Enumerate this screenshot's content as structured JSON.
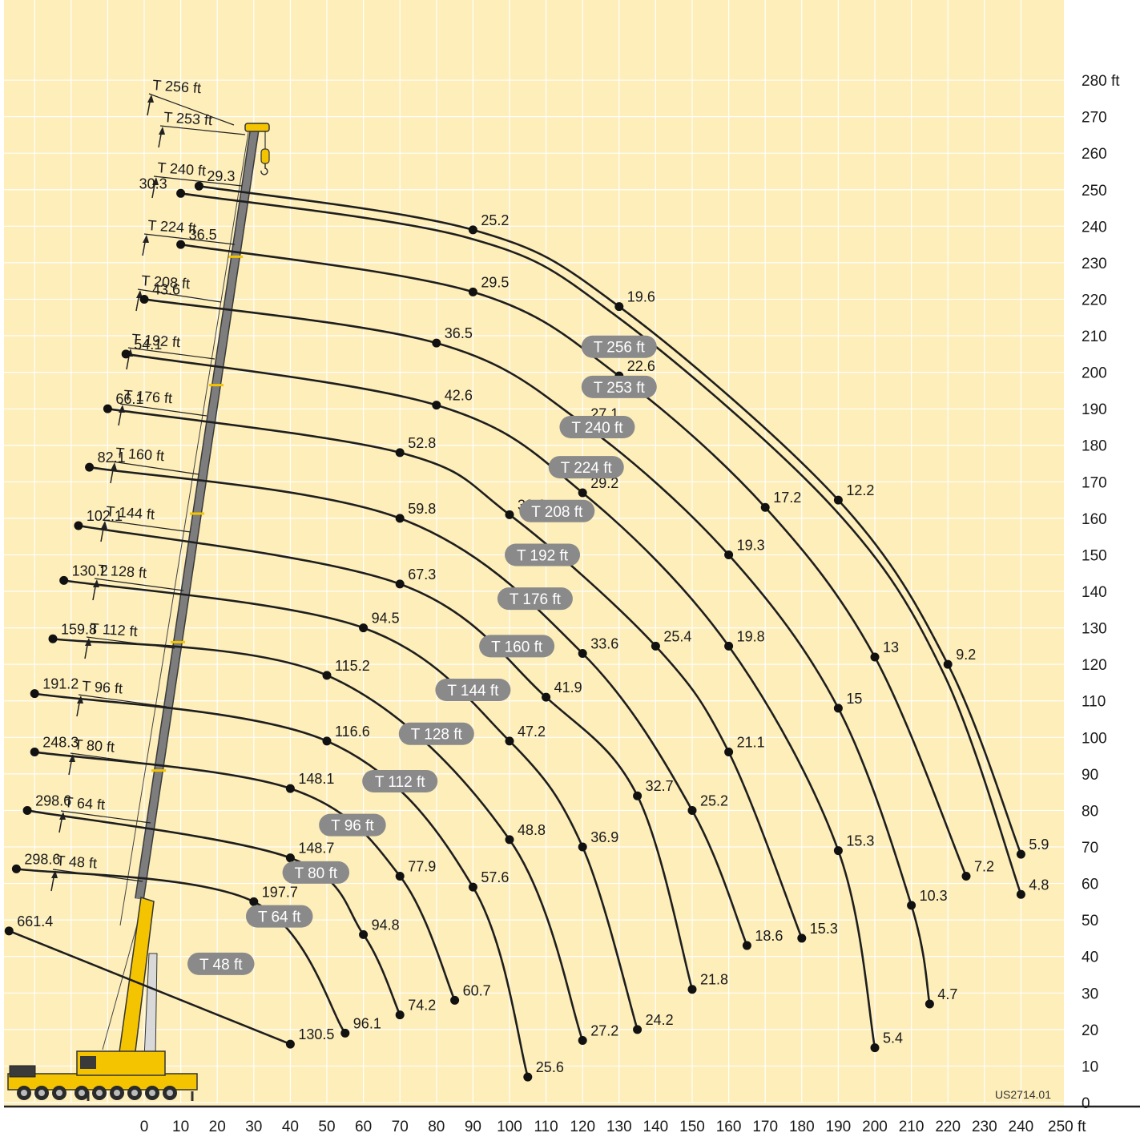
{
  "colors": {
    "background": "#fdeeba",
    "grid": "#ffffff",
    "curve": "#1e1e1e",
    "pill": "#8a8a8a",
    "crane_yellow": "#f5c400",
    "boom_gray": "#7d7d7d"
  },
  "drawing_code": "US2714.01",
  "chart_data": {
    "type": "line",
    "title": "",
    "xlabel": "",
    "ylabel": "",
    "x_unit": "ft",
    "y_unit": "ft",
    "xlim": [
      0,
      250
    ],
    "ylim": [
      0,
      280
    ],
    "x_step": 10,
    "y_step": 10,
    "grid": true,
    "x_ticks": [
      "0",
      "10",
      "20",
      "30",
      "40",
      "50",
      "60",
      "70",
      "80",
      "90",
      "100",
      "110",
      "120",
      "130",
      "140",
      "150",
      "160",
      "170",
      "180",
      "190",
      "200",
      "210",
      "220",
      "230",
      "240",
      "250 ft"
    ],
    "y_ticks": [
      "0",
      "10",
      "20",
      "30",
      "40",
      "50",
      "60",
      "70",
      "80",
      "90",
      "100",
      "110",
      "120",
      "130",
      "140",
      "150",
      "160",
      "170",
      "180",
      "190",
      "200",
      "210",
      "220",
      "230",
      "240",
      "250",
      "260",
      "270",
      "280 ft"
    ],
    "boom_labels": [
      "T 256 ft",
      "T 253 ft",
      "T 240 ft",
      "T 224 ft",
      "T 208 ft",
      "T 192 ft",
      "T 176 ft",
      "T 160 ft",
      "T 144 ft",
      "T 128 ft",
      "T 112 ft",
      "T 96 ft",
      "T 80 ft",
      "T 64 ft",
      "T 48 ft"
    ],
    "series": [
      {
        "name": "T 256 ft",
        "label_at": [
          130,
          207
        ],
        "points": [
          {
            "x": 15,
            "y": 251,
            "v": "29.3"
          },
          {
            "x": 90,
            "y": 239,
            "v": "25.2"
          },
          {
            "x": 130,
            "y": 218,
            "v": "19.6"
          },
          {
            "x": 190,
            "y": 165,
            "v": "12.2"
          },
          {
            "x": 220,
            "y": 120,
            "v": "9.2"
          },
          {
            "x": 240,
            "y": 68,
            "v": "5.9"
          }
        ]
      },
      {
        "name": "T 253 ft",
        "label_at": [
          130,
          196
        ],
        "points": [
          {
            "x": 10,
            "y": 249,
            "v": "30.3"
          },
          {
            "x": 240,
            "y": 57,
            "v": "4.8"
          }
        ]
      },
      {
        "name": "T 240 ft",
        "label_at": [
          124,
          185
        ],
        "points": [
          {
            "x": 10,
            "y": 235,
            "v": "36.5"
          },
          {
            "x": 90,
            "y": 222,
            "v": "29.5"
          },
          {
            "x": 130,
            "y": 199,
            "v": "22.6"
          },
          {
            "x": 170,
            "y": 163,
            "v": "17.2"
          },
          {
            "x": 200,
            "y": 122,
            "v": "13"
          },
          {
            "x": 225,
            "y": 62,
            "v": "7.2"
          }
        ]
      },
      {
        "name": "T 224 ft",
        "label_at": [
          121,
          174
        ],
        "points": [
          {
            "x": 0,
            "y": 220,
            "v": "43.6"
          },
          {
            "x": 80,
            "y": 208,
            "v": "36.5"
          },
          {
            "x": 120,
            "y": 186,
            "v": "27.1"
          },
          {
            "x": 160,
            "y": 150,
            "v": "19.3"
          },
          {
            "x": 190,
            "y": 108,
            "v": "15"
          },
          {
            "x": 210,
            "y": 54,
            "v": "10.3"
          },
          {
            "x": 215,
            "y": 27,
            "v": "4.7"
          }
        ]
      },
      {
        "name": "T 208 ft",
        "label_at": [
          113,
          162
        ],
        "points": [
          {
            "x": -5,
            "y": 205,
            "v": "54.1"
          },
          {
            "x": 80,
            "y": 191,
            "v": "42.6"
          },
          {
            "x": 120,
            "y": 167,
            "v": "29.2"
          },
          {
            "x": 160,
            "y": 125,
            "v": "19.8"
          },
          {
            "x": 190,
            "y": 69,
            "v": "15.3"
          },
          {
            "x": 200,
            "y": 15,
            "v": "5.4"
          }
        ]
      },
      {
        "name": "T 192 ft",
        "label_at": [
          109,
          150
        ],
        "points": [
          {
            "x": -10,
            "y": 190,
            "v": "66.1"
          },
          {
            "x": 70,
            "y": 178,
            "v": "52.8"
          },
          {
            "x": 100,
            "y": 161,
            "v": "38.6"
          },
          {
            "x": 140,
            "y": 125,
            "v": "25.4"
          },
          {
            "x": 160,
            "y": 96,
            "v": "21.1"
          },
          {
            "x": 180,
            "y": 45,
            "v": "15.3"
          }
        ]
      },
      {
        "name": "T 176 ft",
        "label_at": [
          107,
          138
        ],
        "points": [
          {
            "x": -15,
            "y": 174,
            "v": "82.1"
          },
          {
            "x": 70,
            "y": 160,
            "v": "59.8"
          },
          {
            "x": 120,
            "y": 123,
            "v": "33.6"
          },
          {
            "x": 150,
            "y": 80,
            "v": "25.2"
          },
          {
            "x": 165,
            "y": 43,
            "v": "18.6"
          }
        ]
      },
      {
        "name": "T 160 ft",
        "label_at": [
          102,
          125
        ],
        "points": [
          {
            "x": -18,
            "y": 158,
            "v": "102.1"
          },
          {
            "x": 70,
            "y": 142,
            "v": "67.3"
          },
          {
            "x": 110,
            "y": 111,
            "v": "41.9"
          },
          {
            "x": 135,
            "y": 84,
            "v": "32.7"
          },
          {
            "x": 150,
            "y": 31,
            "v": "21.8"
          }
        ]
      },
      {
        "name": "T 144 ft",
        "label_at": [
          90,
          113
        ],
        "points": [
          {
            "x": -22,
            "y": 143,
            "v": "130.2"
          },
          {
            "x": 60,
            "y": 130,
            "v": "94.5"
          },
          {
            "x": 100,
            "y": 99,
            "v": "47.2"
          },
          {
            "x": 120,
            "y": 70,
            "v": "36.9"
          },
          {
            "x": 135,
            "y": 20,
            "v": "24.2"
          }
        ]
      },
      {
        "name": "T 128 ft",
        "label_at": [
          80,
          101
        ],
        "points": [
          {
            "x": -25,
            "y": 127,
            "v": "159.8"
          },
          {
            "x": 50,
            "y": 117,
            "v": "115.2"
          },
          {
            "x": 100,
            "y": 72,
            "v": "48.8"
          },
          {
            "x": 120,
            "y": 17,
            "v": "27.2"
          }
        ]
      },
      {
        "name": "T 112 ft",
        "label_at": [
          70,
          88
        ],
        "points": [
          {
            "x": -30,
            "y": 112,
            "v": "191.2"
          },
          {
            "x": 50,
            "y": 99,
            "v": "116.6"
          },
          {
            "x": 90,
            "y": 59,
            "v": "57.6"
          },
          {
            "x": 105,
            "y": 7,
            "v": "25.6"
          }
        ]
      },
      {
        "name": "T 96 ft",
        "label_at": [
          57,
          76
        ],
        "points": [
          {
            "x": -30,
            "y": 96,
            "v": "248.3"
          },
          {
            "x": 40,
            "y": 86,
            "v": "148.1"
          },
          {
            "x": 70,
            "y": 62,
            "v": "77.9"
          },
          {
            "x": 85,
            "y": 28,
            "v": "60.7"
          }
        ]
      },
      {
        "name": "T 80 ft",
        "label_at": [
          47,
          63
        ],
        "points": [
          {
            "x": -32,
            "y": 80,
            "v": "298.6"
          },
          {
            "x": 40,
            "y": 67,
            "v": "148.7"
          },
          {
            "x": 60,
            "y": 46,
            "v": "94.8"
          },
          {
            "x": 70,
            "y": 24,
            "v": "74.2"
          }
        ]
      },
      {
        "name": "T 64 ft",
        "label_at": [
          37,
          51
        ],
        "points": [
          {
            "x": -35,
            "y": 64,
            "v": "298.6"
          },
          {
            "x": 30,
            "y": 55,
            "v": "197.7"
          },
          {
            "x": 55,
            "y": 19,
            "v": "96.1"
          }
        ]
      },
      {
        "name": "T 48 ft",
        "label_at": [
          21,
          38
        ],
        "points": [
          {
            "x": -37,
            "y": 47,
            "v": "661.4"
          },
          {
            "x": 40,
            "y": 16,
            "v": "130.5"
          }
        ]
      }
    ]
  }
}
